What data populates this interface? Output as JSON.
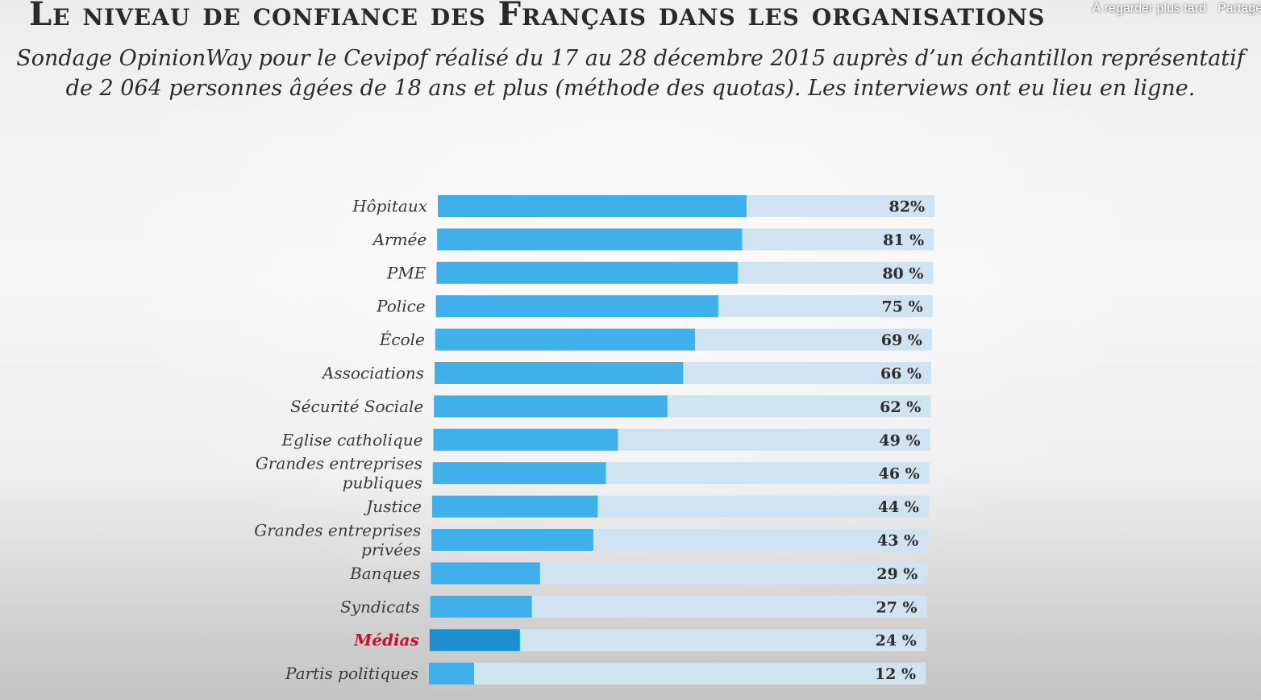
{
  "overlay": {
    "watch_later": "À regarder plus tard",
    "share": "Partager"
  },
  "chart_data": {
    "type": "bar",
    "orientation": "horizontal",
    "title": "Le niveau de confiance des Français dans les organisations",
    "subtitle_line1": "Sondage OpinionWay pour le Cevipof réalisé du 17 au 28 décembre 2015 auprès d’un échantillon représentatif",
    "subtitle_line2": "de 2 064 personnes âgées de 18 ans et plus (méthode des quotas). Les interviews ont eu lieu en ligne.",
    "categories": [
      [
        "Hôpitaux"
      ],
      [
        "Armée"
      ],
      [
        "PME"
      ],
      [
        "Police"
      ],
      [
        "École"
      ],
      [
        "Associations"
      ],
      [
        "Sécurité Sociale"
      ],
      [
        "Eglise catholique"
      ],
      [
        "Grandes entreprises",
        "publiques"
      ],
      [
        "Justice"
      ],
      [
        "Grandes entreprises",
        "privées"
      ],
      [
        "Banques"
      ],
      [
        "Syndicats"
      ],
      [
        "Médias"
      ],
      [
        "Partis politiques"
      ]
    ],
    "values": [
      82,
      81,
      80,
      75,
      69,
      66,
      62,
      49,
      46,
      44,
      43,
      29,
      27,
      24,
      12
    ],
    "value_labels": [
      "82%",
      "81 %",
      "80 %",
      "75 %",
      "69 %",
      "66 %",
      "62 %",
      "49 %",
      "46 %",
      "44 %",
      "43 %",
      "29 %",
      "27 %",
      "24 %",
      "12 %"
    ],
    "highlight_category": "Médias",
    "xlim": [
      0,
      100
    ],
    "colors": {
      "bar": "#3fb0ea",
      "bar_highlight": "#1c8fd0",
      "track": "#cfe3f1",
      "label_highlight": "#c8102e"
    }
  }
}
